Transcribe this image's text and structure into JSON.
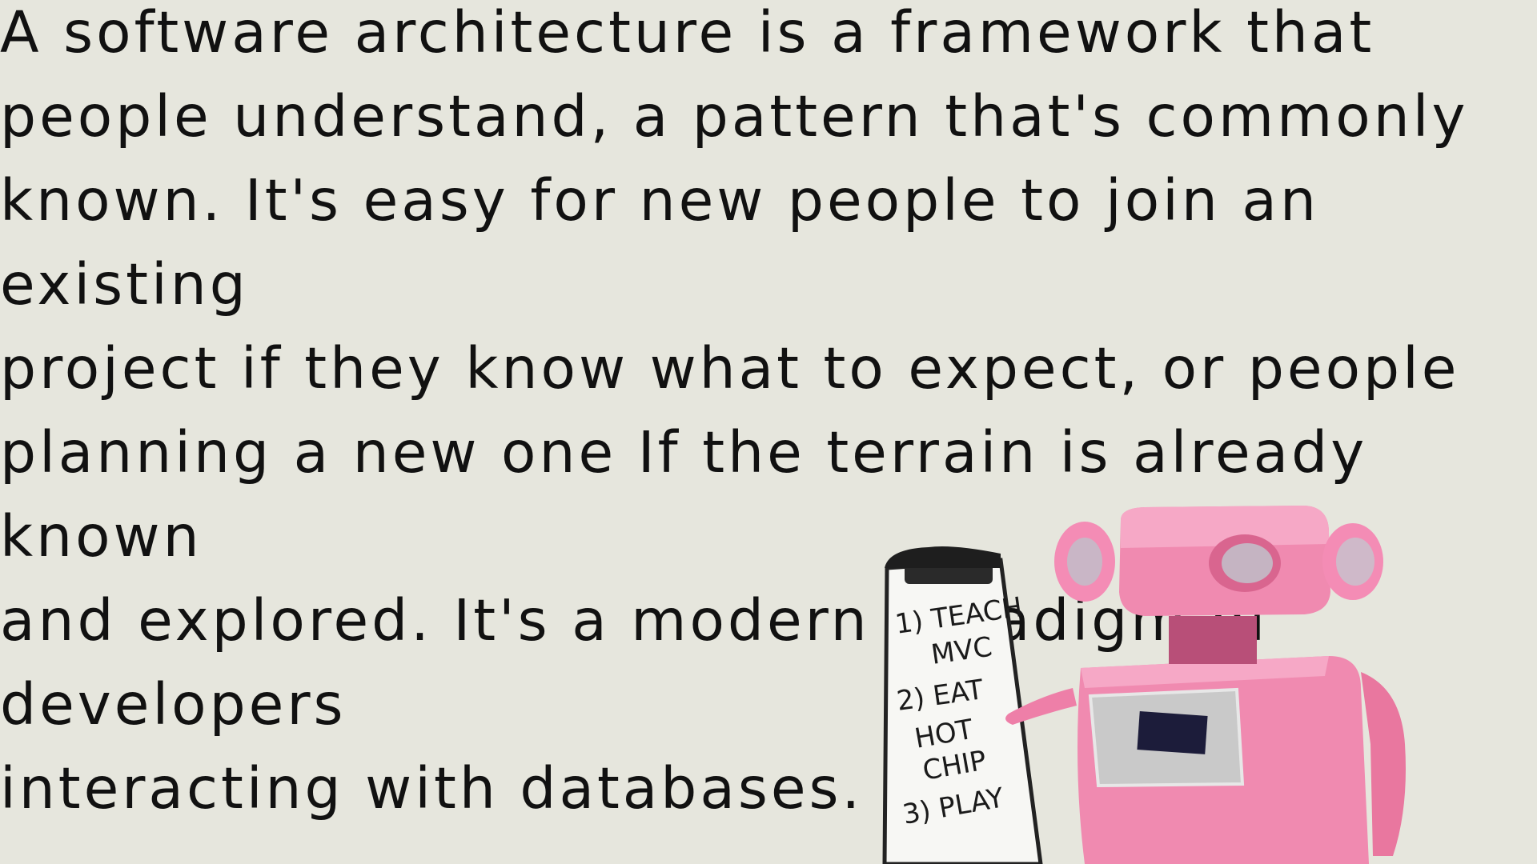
{
  "slide": {
    "paragraph": "A software architecture is a framework that\npeople understand, a pattern that's commonly\nknown. It's easy for new people to join an existing\nproject if they know what to expect, or people\nplanning a new one If the terrain is already known\nand explored. It's a modern paradigm of developers\ninteracting with databases."
  },
  "illustration": {
    "subject": "pink robot holding a clipboard",
    "clipboard_lines": [
      "1) TEACH",
      "MVC",
      "2) EAT",
      "HOT",
      "CHIP",
      "3) PLAY"
    ]
  },
  "colors": {
    "background": "#e6e6dd",
    "text": "#111111",
    "robot_pink": "#f08ab0"
  }
}
